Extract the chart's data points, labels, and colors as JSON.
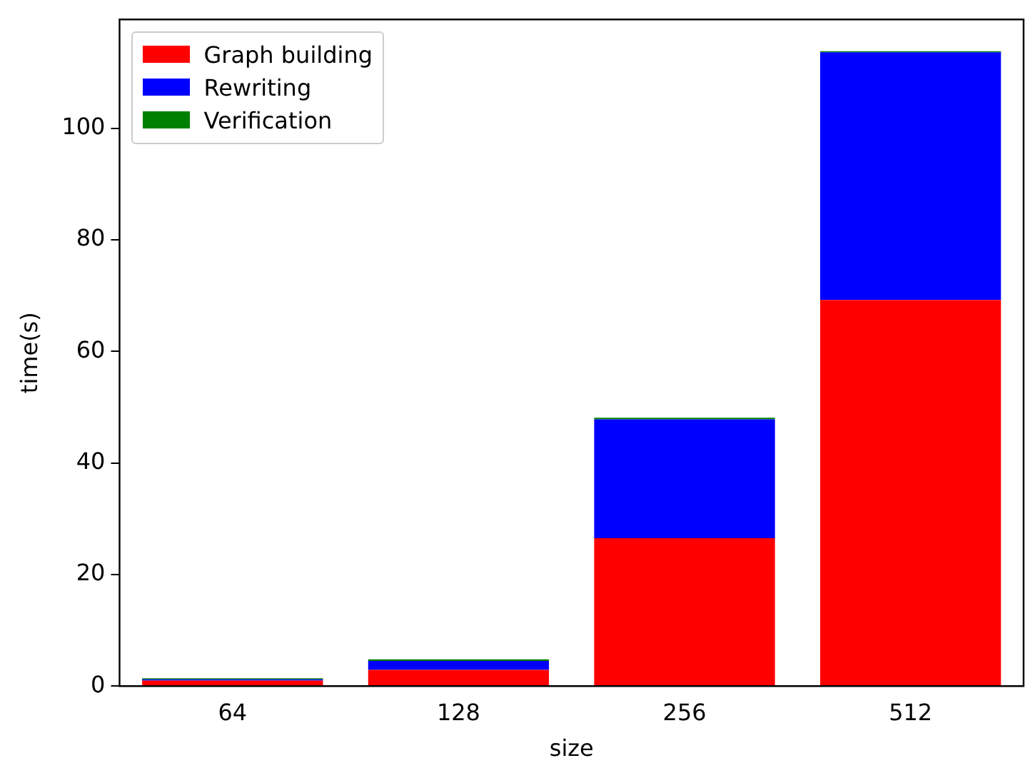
{
  "chart_data": {
    "type": "bar",
    "stacked": true,
    "xlabel": "size",
    "ylabel": "time(s)",
    "categories": [
      "64",
      "128",
      "256",
      "512"
    ],
    "series": [
      {
        "name": "Graph building",
        "color": "#ff0000",
        "values": [
          1.0,
          2.9,
          26.5,
          69.2
        ]
      },
      {
        "name": "Rewriting",
        "color": "#0000ff",
        "values": [
          0.2,
          1.6,
          21.3,
          44.4
        ]
      },
      {
        "name": "Verification",
        "color": "#008000",
        "values": [
          0.2,
          0.3,
          0.3,
          0.2
        ]
      }
    ],
    "ylim": [
      0,
      119.5
    ],
    "yticks": [
      0,
      20,
      40,
      60,
      80,
      100
    ],
    "grid": false,
    "legend": "top left"
  }
}
